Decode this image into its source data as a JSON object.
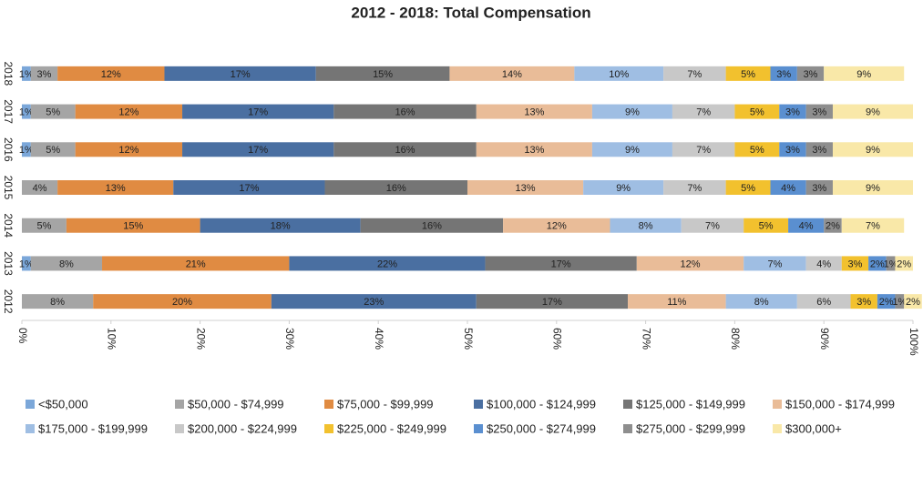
{
  "chart_data": {
    "type": "stacked-bar-100",
    "title": "2012 - 2018: Total Compensation",
    "categories": [
      "2012",
      "2013",
      "2014",
      "2015",
      "2016",
      "2017",
      "2018"
    ],
    "xlim": [
      0,
      100
    ],
    "xticks": [
      {
        "value": 0,
        "label": "0%"
      },
      {
        "value": 10,
        "label": "10%"
      },
      {
        "value": 20,
        "label": "20%"
      },
      {
        "value": 30,
        "label": "30%"
      },
      {
        "value": 40,
        "label": "40%"
      },
      {
        "value": 50,
        "label": "50%"
      },
      {
        "value": 60,
        "label": "60%"
      },
      {
        "value": 70,
        "label": "70%"
      },
      {
        "value": 80,
        "label": "80%"
      },
      {
        "value": 90,
        "label": "90%"
      },
      {
        "value": 100,
        "label": "100%"
      }
    ],
    "legend": "bottom",
    "series": [
      {
        "name": "<$50,000",
        "color": "#7ba7d9",
        "values": [
          0,
          1,
          0,
          0,
          1,
          1,
          1
        ],
        "value_labels": [
          null,
          "1%",
          null,
          null,
          "1%",
          "1%",
          "1%"
        ]
      },
      {
        "name": "$50,000 - $74,999",
        "color": "#a5a5a5",
        "values": [
          8,
          8,
          5,
          4,
          5,
          5,
          3
        ],
        "value_labels": [
          "8%",
          "8%",
          "5%",
          "4%",
          "5%",
          "5%",
          "3%"
        ]
      },
      {
        "name": "$75,000 - $99,999",
        "color": "#e08b42",
        "values": [
          20,
          21,
          15,
          13,
          12,
          12,
          12
        ],
        "value_labels": [
          "20%",
          "21%",
          "15%",
          "13%",
          "12%",
          "12%",
          "12%"
        ]
      },
      {
        "name": "$100,000 - $124,999",
        "color": "#4a6fa1",
        "values": [
          23,
          22,
          18,
          17,
          17,
          17,
          17
        ],
        "value_labels": [
          "23%",
          "22%",
          "18%",
          "17%",
          "17%",
          "17%",
          "17%"
        ]
      },
      {
        "name": "$125,000 - $149,999",
        "color": "#757575",
        "values": [
          17,
          17,
          16,
          16,
          16,
          16,
          15
        ],
        "value_labels": [
          "17%",
          "17%",
          "16%",
          "16%",
          "16%",
          "16%",
          "15%"
        ]
      },
      {
        "name": "$150,000 - $174,999",
        "color": "#e9bc98",
        "values": [
          11,
          12,
          12,
          13,
          13,
          13,
          14
        ],
        "value_labels": [
          "11%",
          "12%",
          "12%",
          "13%",
          "13%",
          "13%",
          "14%"
        ]
      },
      {
        "name": "$175,000 - $199,999",
        "color": "#9fbee3",
        "values": [
          8,
          7,
          8,
          9,
          9,
          9,
          10
        ],
        "value_labels": [
          "8%",
          "7%",
          "8%",
          "9%",
          "9%",
          "9%",
          "10%"
        ]
      },
      {
        "name": "$200,000 - $224,999",
        "color": "#c8c8c8",
        "values": [
          6,
          4,
          7,
          7,
          7,
          7,
          7
        ],
        "value_labels": [
          "6%",
          "4%",
          "7%",
          "7%",
          "7%",
          "7%",
          "7%"
        ]
      },
      {
        "name": "$225,000 - $249,999",
        "color": "#f2c12e",
        "values": [
          3,
          3,
          5,
          5,
          5,
          5,
          5
        ],
        "value_labels": [
          "3%",
          "3%",
          "5%",
          "5%",
          "5%",
          "5%",
          "5%"
        ]
      },
      {
        "name": "$250,000 - $274,999",
        "color": "#5a8fd0",
        "values": [
          2,
          2,
          4,
          4,
          3,
          3,
          3
        ],
        "value_labels": [
          "2%",
          "2%",
          "4%",
          "4%",
          "3%",
          "3%",
          "3%"
        ]
      },
      {
        "name": "$275,000 - $299,999",
        "color": "#8e8e8e",
        "values": [
          1,
          1,
          2,
          3,
          3,
          3,
          3
        ],
        "value_labels": [
          "1%",
          "1%",
          "2%",
          "3%",
          "3%",
          "3%",
          "3%"
        ]
      },
      {
        "name": "$300,000+",
        "color": "#f9e8a8",
        "values": [
          2,
          2,
          7,
          9,
          9,
          9,
          9
        ],
        "value_labels": [
          "2%",
          "2%",
          "7%",
          "9%",
          "9%",
          "9%",
          "9%"
        ]
      }
    ]
  }
}
